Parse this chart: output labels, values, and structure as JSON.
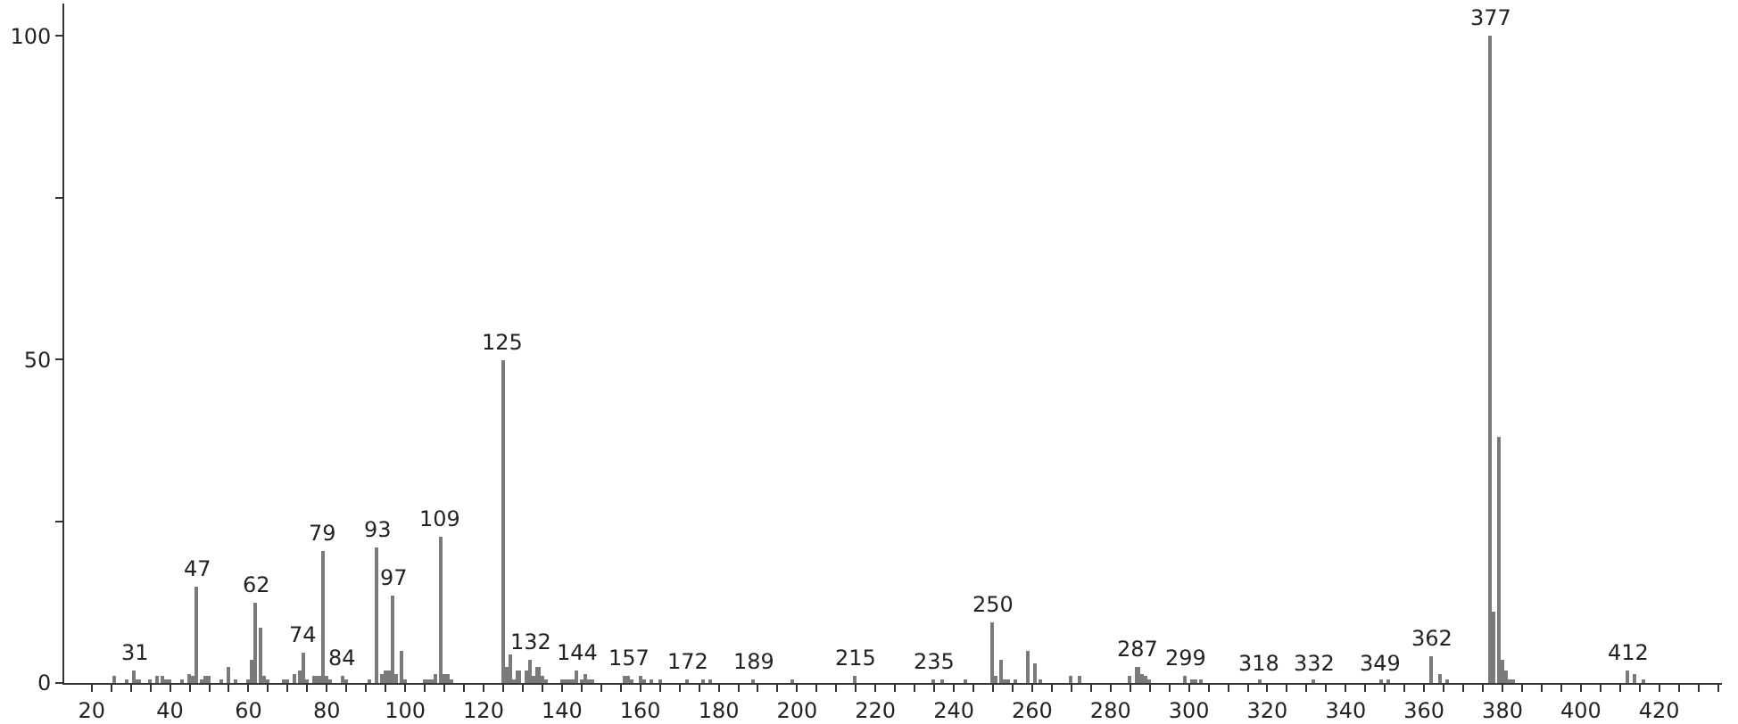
{
  "chart_data": {
    "type": "bar",
    "color": "#7a7a7a",
    "x": [
      26,
      29,
      31,
      32,
      35,
      37,
      38,
      39,
      40,
      43,
      45,
      46,
      47,
      48,
      49,
      50,
      53,
      55,
      57,
      60,
      61,
      62,
      63,
      64,
      65,
      69,
      70,
      72,
      73,
      74,
      75,
      77,
      78,
      79,
      80,
      81,
      84,
      85,
      91,
      93,
      94,
      95,
      96,
      97,
      98,
      99,
      100,
      105,
      106,
      107,
      108,
      109,
      110,
      111,
      112,
      125,
      126,
      127,
      128,
      129,
      131,
      132,
      133,
      134,
      135,
      136,
      140,
      141,
      142,
      143,
      144,
      145,
      146,
      147,
      148,
      156,
      157,
      158,
      160,
      161,
      163,
      165,
      172,
      176,
      178,
      189,
      199,
      215,
      235,
      237,
      243,
      250,
      251,
      252,
      253,
      254,
      256,
      259,
      261,
      262,
      270,
      272,
      285,
      287,
      288,
      289,
      290,
      299,
      301,
      302,
      303,
      318,
      332,
      349,
      351,
      362,
      364,
      366,
      377,
      378,
      379,
      380,
      381,
      382,
      383,
      412,
      414,
      416
    ],
    "values": [
      1,
      0.5,
      2,
      0.5,
      0.5,
      1,
      1,
      0.5,
      0.5,
      0.5,
      1.5,
      1,
      15,
      0.5,
      1,
      1,
      0.5,
      2.5,
      0.5,
      0.5,
      3.5,
      12.5,
      8.5,
      1,
      0.5,
      0.5,
      0.5,
      1.5,
      2,
      4.7,
      0.5,
      1,
      1,
      20.5,
      1,
      0.5,
      1,
      0.5,
      0.5,
      21,
      1.5,
      2,
      2,
      13.5,
      1.5,
      5,
      0.5,
      0.5,
      0.5,
      0.5,
      1.5,
      22.7,
      1.5,
      1.5,
      0.5,
      50,
      2.5,
      4.5,
      0.5,
      2,
      2,
      3.5,
      1,
      2.5,
      1,
      0.5,
      0.5,
      0.5,
      0.5,
      0.5,
      2,
      0.5,
      1.5,
      0.5,
      0.5,
      1,
      1,
      0.5,
      1,
      0.5,
      0.5,
      0.5,
      0.5,
      0.5,
      0.5,
      0.5,
      0.5,
      1,
      0.5,
      0.5,
      0.5,
      9.5,
      1,
      3.5,
      0.5,
      0.5,
      0.5,
      5,
      3,
      0.5,
      1,
      1,
      1,
      2.5,
      1.5,
      1,
      0.5,
      1,
      0.5,
      0.5,
      0.5,
      0.3,
      0.3,
      0.3,
      0.3,
      4,
      1.5,
      0.5,
      100,
      11,
      38,
      3.5,
      2,
      0.5,
      0.5,
      2,
      1.5,
      0.5
    ],
    "annotations": [
      {
        "text": "31",
        "x": 31,
        "y": 2
      },
      {
        "text": "47",
        "x": 47,
        "y": 15
      },
      {
        "text": "62",
        "x": 62,
        "y": 12.5
      },
      {
        "text": "74",
        "x": 74,
        "y": 4.7
      },
      {
        "text": "79",
        "x": 79,
        "y": 20.5
      },
      {
        "text": "84",
        "x": 84,
        "y": 1
      },
      {
        "text": "93",
        "x": 93,
        "y": 21
      },
      {
        "text": "97",
        "x": 97,
        "y": 13.5
      },
      {
        "text": "109",
        "x": 109,
        "y": 22.7
      },
      {
        "text": "125",
        "x": 125,
        "y": 50
      },
      {
        "text": "132",
        "x": 132,
        "y": 3.5
      },
      {
        "text": "144",
        "x": 144,
        "y": 2
      },
      {
        "text": "157",
        "x": 157,
        "y": 1
      },
      {
        "text": "172",
        "x": 172,
        "y": 0.5
      },
      {
        "text": "189",
        "x": 189,
        "y": 0.5
      },
      {
        "text": "215",
        "x": 215,
        "y": 1
      },
      {
        "text": "235",
        "x": 235,
        "y": 0.5
      },
      {
        "text": "250",
        "x": 250,
        "y": 9.5
      },
      {
        "text": "287",
        "x": 287,
        "y": 2.5
      },
      {
        "text": "299",
        "x": 299,
        "y": 1
      },
      {
        "text": "318",
        "x": 318,
        "y": 0.3
      },
      {
        "text": "332",
        "x": 332,
        "y": 0.3
      },
      {
        "text": "349",
        "x": 349,
        "y": 0.3
      },
      {
        "text": "362",
        "x": 362,
        "y": 4
      },
      {
        "text": "377",
        "x": 377,
        "y": 100
      },
      {
        "text": "412",
        "x": 412,
        "y": 2
      }
    ],
    "xlim": [
      13,
      436
    ],
    "xticks": [
      20,
      {
        "value": 25,
        "label": null
      },
      {
        "value": 30,
        "label": null
      },
      {
        "value": 35,
        "label": null
      },
      40,
      {
        "value": 45,
        "label": null
      },
      {
        "value": 50,
        "label": null
      },
      {
        "value": 55,
        "label": null
      },
      60,
      {
        "value": 65,
        "label": null
      },
      {
        "value": 70,
        "label": null
      },
      {
        "value": 75,
        "label": null
      },
      80,
      {
        "value": 85,
        "label": null
      },
      {
        "value": 90,
        "label": null
      },
      {
        "value": 95,
        "label": null
      },
      100,
      {
        "value": 105,
        "label": null
      },
      {
        "value": 110,
        "label": null
      },
      {
        "value": 115,
        "label": null
      },
      120,
      {
        "value": 125,
        "label": null
      },
      {
        "value": 130,
        "label": null
      },
      {
        "value": 135,
        "label": null
      },
      140,
      {
        "value": 145,
        "label": null
      },
      {
        "value": 150,
        "label": null
      },
      {
        "value": 155,
        "label": null
      },
      160,
      {
        "value": 165,
        "label": null
      },
      {
        "value": 170,
        "label": null
      },
      {
        "value": 175,
        "label": null
      },
      180,
      {
        "value": 185,
        "label": null
      },
      {
        "value": 190,
        "label": null
      },
      {
        "value": 195,
        "label": null
      },
      200,
      {
        "value": 205,
        "label": null
      },
      {
        "value": 210,
        "label": null
      },
      {
        "value": 215,
        "label": null
      },
      220,
      {
        "value": 225,
        "label": null
      },
      {
        "value": 230,
        "label": null
      },
      {
        "value": 235,
        "label": null
      },
      240,
      {
        "value": 245,
        "label": null
      },
      {
        "value": 250,
        "label": null
      },
      {
        "value": 255,
        "label": null
      },
      260,
      {
        "value": 265,
        "label": null
      },
      {
        "value": 270,
        "label": null
      },
      {
        "value": 275,
        "label": null
      },
      280,
      {
        "value": 285,
        "label": null
      },
      {
        "value": 290,
        "label": null
      },
      {
        "value": 295,
        "label": null
      },
      300,
      {
        "value": 305,
        "label": null
      },
      {
        "value": 310,
        "label": null
      },
      {
        "value": 315,
        "label": null
      },
      320,
      {
        "value": 325,
        "label": null
      },
      {
        "value": 330,
        "label": null
      },
      {
        "value": 335,
        "label": null
      },
      340,
      {
        "value": 345,
        "label": null
      },
      {
        "value": 350,
        "label": null
      },
      {
        "value": 355,
        "label": null
      },
      360,
      {
        "value": 365,
        "label": null
      },
      {
        "value": 370,
        "label": null
      },
      {
        "value": 375,
        "label": null
      },
      380,
      {
        "value": 385,
        "label": null
      },
      {
        "value": 390,
        "label": null
      },
      {
        "value": 395,
        "label": null
      },
      400,
      {
        "value": 405,
        "label": null
      },
      {
        "value": 410,
        "label": null
      },
      {
        "value": 415,
        "label": null
      },
      420,
      {
        "value": 425,
        "label": null
      },
      {
        "value": 430,
        "label": null
      },
      {
        "value": 435,
        "label": null
      }
    ],
    "ylim": [
      0,
      105
    ],
    "yticks": [
      0,
      {
        "value": 25,
        "label": null
      },
      50,
      {
        "value": 75,
        "label": null
      },
      100
    ]
  }
}
